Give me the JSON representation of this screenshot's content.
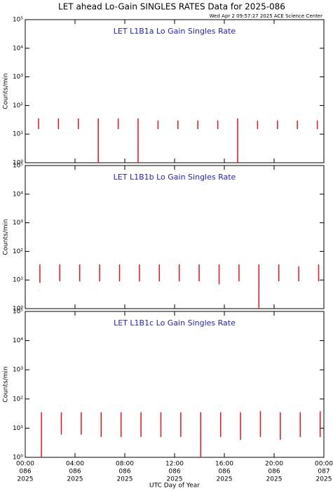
{
  "header": {
    "title": "LET ahead Lo-Gain SINGLES RATES Data for 2025-086",
    "timestamp": "Wed Apr  2 09:57:27 2025 ACE Science Center",
    "xlabel": "UTC Day of Year"
  },
  "chart_data": [
    {
      "type": "line",
      "title": "LET L1B1a Lo Gain Singles Rate",
      "ylabel": "Counts/min",
      "log_y": true,
      "color": "#e8141c",
      "xlim": [
        0,
        24
      ],
      "xticks": [
        0,
        4,
        8,
        12,
        16,
        20,
        24
      ],
      "ylim": [
        1,
        100000
      ],
      "yticks": [
        {
          "value": 1,
          "label": "10⁰"
        },
        {
          "value": 10,
          "label": "10¹"
        },
        {
          "value": 100,
          "label": "10²"
        },
        {
          "value": 1000,
          "label": "10³"
        },
        {
          "value": 10000,
          "label": "10⁴"
        },
        {
          "value": 100000,
          "label": "10⁵"
        }
      ],
      "x": [
        1.07,
        1.07,
        1.07,
        2.67,
        2.67,
        2.67,
        4.27,
        4.27,
        4.27,
        5.87,
        5.87,
        5.87,
        7.47,
        7.47,
        7.47,
        9.07,
        9.07,
        9.07,
        10.67,
        10.67,
        10.67,
        12.27,
        12.27,
        12.27,
        13.87,
        13.87,
        13.87,
        15.47,
        15.47,
        15.47,
        17.07,
        17.07,
        17.07,
        18.67,
        18.67,
        18.67,
        20.27,
        20.27,
        20.27,
        21.87,
        21.87,
        21.87,
        23.47,
        23.47,
        23.47
      ],
      "values": [
        35,
        15,
        null,
        35,
        15,
        null,
        35,
        15,
        null,
        35,
        1,
        null,
        35,
        15,
        null,
        35,
        1,
        null,
        30,
        15,
        null,
        30,
        15,
        null,
        30,
        15,
        null,
        30,
        15,
        null,
        35,
        1,
        null,
        30,
        15,
        null,
        30,
        15,
        null,
        30,
        15,
        null,
        30,
        15,
        null
      ]
    },
    {
      "type": "line",
      "title": "LET L1B1b Lo Gain Singles Rate",
      "ylabel": "Counts/min",
      "log_y": true,
      "color": "#e8141c",
      "xlim": [
        0,
        24
      ],
      "xticks": [
        0,
        4,
        8,
        12,
        16,
        20,
        24
      ],
      "ylim": [
        1,
        100000
      ],
      "yticks": [
        {
          "value": 1,
          "label": "10⁰"
        },
        {
          "value": 10,
          "label": "10¹"
        },
        {
          "value": 100,
          "label": "10²"
        },
        {
          "value": 1000,
          "label": "10³"
        },
        {
          "value": 10000,
          "label": "10⁴"
        },
        {
          "value": 100000,
          "label": "10⁵"
        }
      ],
      "x": [
        1.18,
        1.18,
        1.18,
        2.78,
        2.78,
        2.78,
        4.38,
        4.38,
        4.38,
        5.98,
        5.98,
        5.98,
        7.58,
        7.58,
        7.58,
        9.18,
        9.18,
        9.18,
        10.78,
        10.78,
        10.78,
        12.38,
        12.38,
        12.38,
        13.98,
        13.98,
        13.98,
        15.58,
        15.58,
        15.58,
        17.18,
        17.18,
        17.18,
        18.78,
        18.78,
        18.78,
        20.38,
        20.38,
        20.38,
        21.98,
        21.98,
        21.98,
        23.58,
        23.58,
        23.58
      ],
      "values": [
        35,
        8,
        null,
        35,
        9,
        null,
        35,
        9,
        null,
        35,
        9,
        null,
        35,
        9,
        null,
        35,
        9,
        null,
        35,
        9,
        null,
        35,
        9,
        null,
        35,
        9,
        null,
        35,
        7,
        null,
        35,
        9,
        null,
        35,
        1,
        null,
        35,
        9,
        null,
        30,
        9,
        null,
        35,
        9,
        null
      ]
    },
    {
      "type": "line",
      "title": "LET L1B1c Lo Gain Singles Rate",
      "ylabel": "Counts/min",
      "log_y": true,
      "color": "#e8141c",
      "xlim": [
        0,
        24
      ],
      "xticks": [
        {
          "value": 0,
          "label": [
            "00:00",
            "086",
            "2025"
          ]
        },
        {
          "value": 4,
          "label": [
            "04:00",
            "086",
            "2025"
          ]
        },
        {
          "value": 8,
          "label": [
            "08:00",
            "086",
            "2025"
          ]
        },
        {
          "value": 12,
          "label": [
            "12:00",
            "086",
            "2025"
          ]
        },
        {
          "value": 16,
          "label": [
            "16:00",
            "086",
            "2025"
          ]
        },
        {
          "value": 20,
          "label": [
            "20:00",
            "086",
            "2025"
          ]
        },
        {
          "value": 24,
          "label": [
            "00:00",
            "087",
            "2025"
          ]
        }
      ],
      "ylim": [
        1,
        100000
      ],
      "yticks": [
        {
          "value": 1,
          "label": "10⁰"
        },
        {
          "value": 10,
          "label": "10¹"
        },
        {
          "value": 100,
          "label": "10²"
        },
        {
          "value": 1000,
          "label": "10³"
        },
        {
          "value": 10000,
          "label": "10⁴"
        },
        {
          "value": 100000,
          "label": "10⁵"
        }
      ],
      "x": [
        1.3,
        1.3,
        1.3,
        2.9,
        2.9,
        2.9,
        4.5,
        4.5,
        4.5,
        6.1,
        6.1,
        6.1,
        7.7,
        7.7,
        7.7,
        9.3,
        9.3,
        9.3,
        10.9,
        10.9,
        10.9,
        12.5,
        12.5,
        12.5,
        14.1,
        14.1,
        14.1,
        15.7,
        15.7,
        15.7,
        17.3,
        17.3,
        17.3,
        18.9,
        18.9,
        18.9,
        20.5,
        20.5,
        20.5,
        22.1,
        22.1,
        22.1,
        23.7,
        23.7,
        23.7
      ],
      "values": [
        35,
        1,
        null,
        35,
        6,
        null,
        35,
        6,
        null,
        35,
        5,
        null,
        35,
        5,
        null,
        35,
        5,
        null,
        35,
        5,
        null,
        35,
        5,
        null,
        35,
        1,
        null,
        35,
        5,
        null,
        35,
        4,
        null,
        38,
        5,
        null,
        35,
        4,
        null,
        35,
        5,
        null,
        38,
        5,
        null
      ]
    }
  ]
}
